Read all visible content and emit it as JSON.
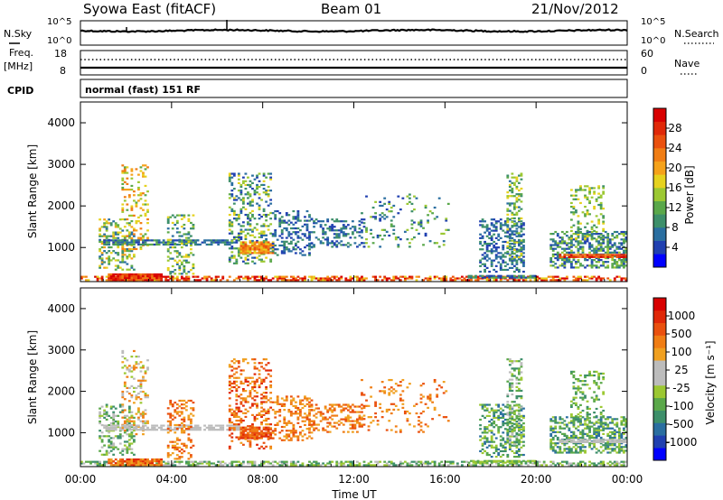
{
  "header": {
    "station": "Syowa East (fitACF)",
    "beam": "Beam 01",
    "date": "21/Nov/2012"
  },
  "noise_panel": {
    "left_label": "N.Sky",
    "right_label": "N.Search",
    "tick_top": "10^5",
    "tick_bottom": "10^0",
    "right_tick_top": "10^5",
    "right_tick_bottom": "10^0"
  },
  "freq_panel": {
    "left_label_1": "Freq.",
    "left_label_2": "[MHz]",
    "right_label": "Nave",
    "left_tick_top": "18",
    "left_tick_bottom": "8",
    "right_tick_top": "60",
    "right_tick_bottom": "0"
  },
  "cpid": {
    "label": "CPID",
    "mode": "normal (fast) 151 RF"
  },
  "axes": {
    "ylabel": "Slant Range [km]",
    "xlabel": "Time UT",
    "xticks": [
      "00:00",
      "04:00",
      "08:00",
      "12:00",
      "16:00",
      "20:00",
      "00:00"
    ],
    "yticks": [
      "1000",
      "2000",
      "3000",
      "4000"
    ],
    "x_range_hours": [
      0,
      24
    ],
    "y_range_km": [
      180,
      4500
    ]
  },
  "colorbars": {
    "power": {
      "label": "Power [dB]",
      "ticks": [
        "4",
        "8",
        "12",
        "16",
        "20",
        "24",
        "28"
      ],
      "colors": [
        "#0000ff",
        "#2040b0",
        "#2a6ea0",
        "#3d8f6a",
        "#5aa84a",
        "#9cc832",
        "#e6d21e",
        "#f5a21a",
        "#f07d14",
        "#ea500e",
        "#e02808",
        "#d80000"
      ]
    },
    "velocity": {
      "label": "Velocity [m s⁻¹]",
      "ticks": [
        "1000",
        "500",
        "100",
        "25",
        "-25",
        "-100",
        "-500",
        "-1000"
      ],
      "colors": [
        "#0000ff",
        "#2040b0",
        "#2a6ea0",
        "#3d8f6a",
        "#5aa84a",
        "#9cc832",
        "#bcbcbc",
        "#bcbcbc",
        "#f0a020",
        "#f07d14",
        "#ea500e",
        "#e02808",
        "#d80000"
      ]
    }
  },
  "chart_data": {
    "type": "heatmap",
    "description_kind": "range-time intensity",
    "x_unit": "hours UT",
    "y_unit": "km",
    "power_regions": [
      {
        "t": [
          0.0,
          24.0
        ],
        "r": [
          200,
          320
        ],
        "d": 0.55,
        "lvl": [
          6,
          12
        ]
      },
      {
        "t": [
          1.2,
          3.6
        ],
        "r": [
          200,
          380
        ],
        "d": 0.9,
        "lvl": [
          8,
          12
        ]
      },
      {
        "t": [
          0.8,
          2.4
        ],
        "r": [
          450,
          1700
        ],
        "d": 0.35,
        "lvl": [
          2,
          7
        ]
      },
      {
        "t": [
          1.8,
          3.0
        ],
        "r": [
          900,
          3000
        ],
        "d": 0.25,
        "lvl": [
          4,
          8
        ]
      },
      {
        "t": [
          1.0,
          5.2
        ],
        "r": [
          1050,
          1200
        ],
        "d": 0.8,
        "lvl": [
          1,
          4
        ]
      },
      {
        "t": [
          3.8,
          5.0
        ],
        "r": [
          350,
          1800
        ],
        "d": 0.3,
        "lvl": [
          2,
          6
        ]
      },
      {
        "t": [
          5.0,
          7.0
        ],
        "r": [
          1050,
          1200
        ],
        "d": 0.75,
        "lvl": [
          1,
          3
        ]
      },
      {
        "t": [
          6.5,
          8.4
        ],
        "r": [
          600,
          2800
        ],
        "d": 0.3,
        "lvl": [
          1,
          6
        ]
      },
      {
        "t": [
          7.0,
          8.5
        ],
        "r": [
          850,
          1150
        ],
        "d": 0.85,
        "lvl": [
          6,
          9
        ]
      },
      {
        "t": [
          8.4,
          10.2
        ],
        "r": [
          800,
          1900
        ],
        "d": 0.32,
        "lvl": [
          1,
          3
        ]
      },
      {
        "t": [
          10.0,
          12.5
        ],
        "r": [
          1000,
          1700
        ],
        "d": 0.3,
        "lvl": [
          1,
          3
        ]
      },
      {
        "t": [
          12.3,
          16.2
        ],
        "r": [
          1000,
          2300
        ],
        "d": 0.12,
        "lvl": [
          1,
          5
        ]
      },
      {
        "t": [
          17.5,
          19.5
        ],
        "r": [
          400,
          1700
        ],
        "d": 0.45,
        "lvl": [
          1,
          3
        ]
      },
      {
        "t": [
          17.0,
          20.0
        ],
        "r": [
          260,
          340
        ],
        "d": 0.7,
        "lvl": [
          1,
          4
        ]
      },
      {
        "t": [
          18.7,
          19.4
        ],
        "r": [
          700,
          2800
        ],
        "d": 0.35,
        "lvl": [
          2,
          6
        ]
      },
      {
        "t": [
          20.6,
          24.0
        ],
        "r": [
          500,
          1400
        ],
        "d": 0.55,
        "lvl": [
          1,
          5
        ]
      },
      {
        "t": [
          21.0,
          24.0
        ],
        "r": [
          750,
          850
        ],
        "d": 0.9,
        "lvl": [
          8,
          11
        ]
      },
      {
        "t": [
          21.5,
          23.0
        ],
        "r": [
          1200,
          2500
        ],
        "d": 0.25,
        "lvl": [
          3,
          6
        ]
      }
    ],
    "velocity_regions": [
      {
        "t": [
          0.0,
          24.0
        ],
        "r": [
          200,
          320
        ],
        "d": 0.55,
        "lvl": [
          3,
          6
        ]
      },
      {
        "t": [
          1.2,
          3.6
        ],
        "r": [
          200,
          380
        ],
        "d": 0.9,
        "lvl": [
          8,
          11
        ]
      },
      {
        "t": [
          0.8,
          2.4
        ],
        "r": [
          450,
          1700
        ],
        "d": 0.35,
        "lvl": [
          3,
          6
        ]
      },
      {
        "t": [
          1.8,
          3.0
        ],
        "r": [
          900,
          3000
        ],
        "d": 0.25,
        "lvl": [
          5,
          9
        ]
      },
      {
        "t": [
          1.0,
          5.2
        ],
        "r": [
          1050,
          1200
        ],
        "d": 0.8,
        "lvl": [
          6,
          7
        ]
      },
      {
        "t": [
          3.8,
          5.0
        ],
        "r": [
          350,
          1800
        ],
        "d": 0.3,
        "lvl": [
          8,
          10
        ]
      },
      {
        "t": [
          5.0,
          7.0
        ],
        "r": [
          1050,
          1200
        ],
        "d": 0.75,
        "lvl": [
          6,
          7
        ]
      },
      {
        "t": [
          6.5,
          8.4
        ],
        "r": [
          600,
          2800
        ],
        "d": 0.3,
        "lvl": [
          8,
          11
        ]
      },
      {
        "t": [
          7.0,
          8.5
        ],
        "r": [
          850,
          1150
        ],
        "d": 0.85,
        "lvl": [
          9,
          11
        ]
      },
      {
        "t": [
          8.4,
          10.2
        ],
        "r": [
          800,
          1900
        ],
        "d": 0.32,
        "lvl": [
          8,
          10
        ]
      },
      {
        "t": [
          10.0,
          12.5
        ],
        "r": [
          1000,
          1700
        ],
        "d": 0.3,
        "lvl": [
          8,
          10
        ]
      },
      {
        "t": [
          12.3,
          16.2
        ],
        "r": [
          1000,
          2300
        ],
        "d": 0.12,
        "lvl": [
          8,
          10
        ]
      },
      {
        "t": [
          17.5,
          19.5
        ],
        "r": [
          400,
          1700
        ],
        "d": 0.45,
        "lvl": [
          2,
          5
        ]
      },
      {
        "t": [
          17.0,
          20.0
        ],
        "r": [
          260,
          340
        ],
        "d": 0.7,
        "lvl": [
          4,
          5
        ]
      },
      {
        "t": [
          18.7,
          19.4
        ],
        "r": [
          700,
          2800
        ],
        "d": 0.35,
        "lvl": [
          3,
          6
        ]
      },
      {
        "t": [
          20.6,
          24.0
        ],
        "r": [
          500,
          1400
        ],
        "d": 0.55,
        "lvl": [
          2,
          5
        ]
      },
      {
        "t": [
          21.0,
          24.0
        ],
        "r": [
          750,
          850
        ],
        "d": 0.9,
        "lvl": [
          6,
          7
        ]
      },
      {
        "t": [
          21.5,
          23.0
        ],
        "r": [
          1200,
          2500
        ],
        "d": 0.25,
        "lvl": [
          3,
          5
        ]
      }
    ]
  }
}
